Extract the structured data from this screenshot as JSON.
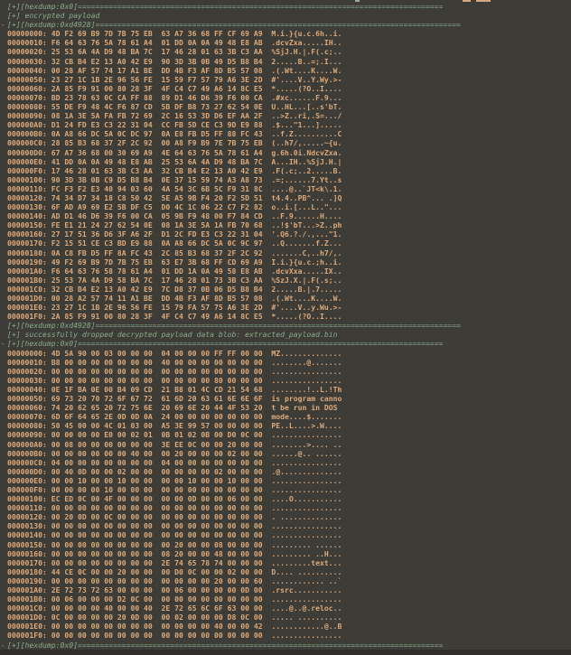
{
  "colors": {
    "background": "#3d3c37",
    "header_green": "#8bab89",
    "hex_text": "#dcaa7c",
    "bottom_band": "#302f2b"
  },
  "terminal": {
    "lines": [
      {
        "kind": "header",
        "dash": false,
        "text": "[+][hexdump:0x0]==================================================================================="
      },
      {
        "kind": "header",
        "dash": false,
        "text": "[+] encrypted payload"
      },
      {
        "kind": "header",
        "dash": true,
        "text": "[+][hexdump:0xd4928]==================================================================================="
      },
      {
        "kind": "hex",
        "dash": false,
        "text": "00000000: 4D F2 69 B9 7D 7B 75 EB  63 A7 36 68 FF CF 69 A9  M.i.}{u.c.6h..i."
      },
      {
        "kind": "hex",
        "dash": false,
        "text": "00000010: F6 64 63 76 5A 78 61 A4  01 DD 0A 0A 49 48 E8 AB  .dcvZxa.....IH.."
      },
      {
        "kind": "hex",
        "dash": false,
        "text": "00000020: 25 53 6A 4A D9 48 BA 7C  17 46 28 01 63 3B C3 AA  %SjJ.H.|.F(.c;.."
      },
      {
        "kind": "hex",
        "dash": false,
        "text": "00000030: 32 CB B4 E2 13 A0 42 E9  90 3D 3B 0B 49 D5 B8 B4  2.....B..=;.I..."
      },
      {
        "kind": "hex",
        "dash": false,
        "text": "00000040: 00 28 AF 57 74 17 A1 BE  DD 4B F3 AF 8D B5 57 08  .(.Wt....K....W."
      },
      {
        "kind": "hex",
        "dash": false,
        "text": "00000050: 23 27 1C 1B 2E 96 56 FE  15 59 F7 57 79 A6 3E 2D  #'....V..Y.Wy.>-"
      },
      {
        "kind": "hex",
        "dash": false,
        "text": "00000060: 2A 85 F9 91 00 80 28 3F  4F C4 C7 49 A6 14 8C E5  *.....(?O..I...."
      },
      {
        "kind": "hex",
        "dash": false,
        "text": "00000070: BD 23 78 63 0C CA FF 88  89 D1 46 D6 39 F6 00 CA  .#xc......F.9..."
      },
      {
        "kind": "hex",
        "dash": false,
        "text": "00000080: 55 DE F9 48 4C F6 87 CD  5B DF B8 73 27 62 54 0E  U..HL...[..s'bT."
      },
      {
        "kind": "hex",
        "dash": false,
        "text": "00000090: 08 1A 3E 5A FA FB 72 69  2C 16 53 3D D6 EF AA 2F  ..>Z..ri,.S=.../"
      },
      {
        "kind": "hex",
        "dash": false,
        "text": "000000A0: D1 24 FD E3 C3 22 31 04  CC FB 5D CE C3 9D E9 88  .$...\"1...]....."
      },
      {
        "kind": "hex",
        "dash": false,
        "text": "000000B0: 0A A8 66 DC 5A 0C DC 97  0A E8 FB D5 FF 88 FC 43  ..f.Z..........C"
      },
      {
        "kind": "hex",
        "dash": false,
        "text": "000000C0: 28 85 B3 68 37 2F 2C 92  00 A8 F9 B9 7E 7B 75 EB  (..h7/,.....~{u."
      },
      {
        "kind": "hex",
        "dash": false,
        "text": "000000D0: 67 A7 36 68 00 30 69 A9  4E 64 63 76 5A 78 61 A4  g.6h.0i.NdcvZxa."
      },
      {
        "kind": "hex",
        "dash": false,
        "text": "000000E0: 41 DD 0A 0A 49 48 E8 AB  25 53 6A 4A D9 48 BA 7C  A...IH..%SjJ.H.|"
      },
      {
        "kind": "hex",
        "dash": false,
        "text": "000000F0: 17 46 28 01 63 3B C3 AA  32 CB B4 E2 13 A0 42 E9  .F(.c;..2.....B."
      },
      {
        "kind": "hex",
        "dash": false,
        "text": "00000100: 90 3D 3B 0B C9 D5 B8 B4  0E 37 15 59 74 A3 A8 73  .=;......7.Yt..s"
      },
      {
        "kind": "hex",
        "dash": false,
        "text": "00000110: FC F3 F2 E3 40 94 03 60  4A 54 3C 6B 5C F9 31 8C  ....@..`JT<k\\.1."
      },
      {
        "kind": "hex",
        "dash": false,
        "text": "00000120: 74 34 D7 34 18 C8 50 42  5E A5 9B F4 20 F2 5D 51  t4.4..PB^... .]Q"
      },
      {
        "kind": "hex",
        "dash": false,
        "text": "00000130: 6F AD A9 69 E2 5B DF C5  D0 4C 1C 06 22 C7 F2 82  o..i.[...L..\"..."
      },
      {
        "kind": "hex",
        "dash": false,
        "text": "00000140: AD D1 46 D6 39 F6 00 CA  05 9B F9 48 00 F7 84 CD  ..F.9......H...."
      },
      {
        "kind": "hex",
        "dash": false,
        "text": "00000150: FE E1 21 24 27 62 54 0E  08 1A 3E 5A 1A FB 70 68  ..!$'bT...>Z..ph"
      },
      {
        "kind": "hex",
        "dash": false,
        "text": "00000160: 27 17 51 36 D6 3F A6 2F  D1 2C FD E3 C3 22 31 04  '.Q6.?./.,...\"1."
      },
      {
        "kind": "hex",
        "dash": false,
        "text": "00000170: F2 15 51 CE C3 BD E9 88  0A A8 66 DC 5A 0C 9C 97  ..Q.......f.Z..."
      },
      {
        "kind": "hex",
        "dash": false,
        "text": "00000180: 0A C8 FB D5 FF 8A FC 43  2C 85 B3 68 37 2F 2C 92  .......C,..h7/,."
      },
      {
        "kind": "hex",
        "dash": false,
        "text": "00000190: 49 F2 69 B9 7D 7B 75 EB  63 E7 3B 68 FF CD 69 A9  I.i.}{u.c.;h..i."
      },
      {
        "kind": "hex",
        "dash": false,
        "text": "000001A0: F6 64 63 76 58 78 61 A4  01 DD 1A 0A 49 58 E8 AB  .dcvXxa.....IX.."
      },
      {
        "kind": "hex",
        "dash": false,
        "text": "000001B0: 25 53 7A 4A D9 58 BA 7C  17 46 28 01 73 3B C3 AA  %SzJ.X.|.F(.s;.."
      },
      {
        "kind": "hex",
        "dash": false,
        "text": "000001C0: 32 CB B4 E2 13 A0 42 E9  7C D8 37 0B 06 D5 B8 B4  2.....B.|.7....."
      },
      {
        "kind": "hex",
        "dash": false,
        "text": "000001D0: 00 28 A2 57 74 11 A1 BE  DD 4B F3 AF 8D B5 57 08  .(.Wt....K....W."
      },
      {
        "kind": "hex",
        "dash": false,
        "text": "000001E0: 23 27 1C 1B 2E 96 56 FE  15 79 FA 57 75 A6 3E 2D  #'....V..y.Wu.>-"
      },
      {
        "kind": "hex",
        "dash": false,
        "text": "000001F0: 2A 85 F9 91 00 80 28 3F  4F C4 C7 49 A6 14 8C E5  *.....(?O..I...."
      },
      {
        "kind": "header",
        "dash": false,
        "text": "[+][hexdump:0xd4928]==================================================================================="
      },
      {
        "kind": "header",
        "dash": false,
        "text": "[+] successfully dropped decrypted payload data blob: extracted_payload.bin"
      },
      {
        "kind": "header",
        "dash": true,
        "text": "[+][hexdump:0x0]==================================================================================="
      },
      {
        "kind": "hex",
        "dash": false,
        "text": "00000000: 4D 5A 90 00 03 00 00 00  04 00 00 00 FF FF 00 00  MZ.............."
      },
      {
        "kind": "hex",
        "dash": false,
        "text": "00000010: B8 00 00 00 00 00 00 00  40 00 00 00 00 00 00 00  ........@......."
      },
      {
        "kind": "hex",
        "dash": false,
        "text": "00000020: 00 00 00 00 00 00 00 00  00 00 00 00 00 00 00 00  ................"
      },
      {
        "kind": "hex",
        "dash": false,
        "text": "00000030: 00 00 00 00 00 00 00 00  00 00 00 00 80 00 00 00  ................"
      },
      {
        "kind": "hex",
        "dash": false,
        "text": "00000040: 0E 1F BA 0E 00 B4 09 CD  21 B8 01 4C CD 21 54 68  ........!..L.!Th"
      },
      {
        "kind": "hex",
        "dash": false,
        "text": "00000050: 69 73 20 70 72 6F 67 72  61 6D 20 63 61 6E 6E 6F  is program canno"
      },
      {
        "kind": "hex",
        "dash": false,
        "text": "00000060: 74 20 62 65 20 72 75 6E  20 69 6E 20 44 4F 53 20  t be run in DOS "
      },
      {
        "kind": "hex",
        "dash": false,
        "text": "00000070: 6D 6F 64 65 2E 0D 0D 0A  24 00 00 00 00 00 00 00  mode....$......."
      },
      {
        "kind": "hex",
        "dash": false,
        "text": "00000080: 50 45 00 00 4C 01 03 00  A5 3E 99 57 00 00 00 00  PE..L....>.W...."
      },
      {
        "kind": "hex",
        "dash": false,
        "text": "00000090: 00 00 00 00 E0 00 02 01  0B 01 02 0B 00 D0 0C 00  ................"
      },
      {
        "kind": "hex",
        "dash": false,
        "text": "000000A0: 00 08 00 00 00 00 00 00  3E EE 0C 00 00 20 00 00  ........>.... .."
      },
      {
        "kind": "hex",
        "dash": false,
        "text": "000000B0: 00 00 00 00 00 00 40 00  00 20 00 00 00 02 00 00  ......@.. ......"
      },
      {
        "kind": "hex",
        "dash": false,
        "text": "000000C0: 04 00 00 00 00 00 00 00  04 00 00 00 00 00 00 00  ................"
      },
      {
        "kind": "hex",
        "dash": false,
        "text": "000000D0: 00 40 0D 00 00 02 00 00  00 00 00 00 02 00 00 00  .@.............."
      },
      {
        "kind": "hex",
        "dash": false,
        "text": "000000E0: 00 00 10 00 00 10 00 00  00 00 10 00 00 10 00 00  ................"
      },
      {
        "kind": "hex",
        "dash": false,
        "text": "000000F0: 00 00 00 00 10 00 00 00  00 00 00 00 00 00 00 00  ................"
      },
      {
        "kind": "hex",
        "dash": false,
        "text": "00000100: EC ED 0C 00 4F 00 00 00  00 00 0D 00 00 06 00 00  ....O..........."
      },
      {
        "kind": "hex",
        "dash": false,
        "text": "00000110: 00 00 00 00 00 00 00 00  00 00 00 00 00 00 00 00  ................"
      },
      {
        "kind": "hex",
        "dash": false,
        "text": "00000120: 00 20 0D 00 0C 00 00 00  00 00 00 00 00 00 00 00  . .............."
      },
      {
        "kind": "hex",
        "dash": false,
        "text": "00000130: 00 00 00 00 00 00 00 00  00 00 00 00 00 00 00 00  ................"
      },
      {
        "kind": "hex",
        "dash": false,
        "text": "00000140: 00 00 00 00 00 00 00 00  00 00 00 00 00 00 00 00  ................"
      },
      {
        "kind": "hex",
        "dash": false,
        "text": "00000150: 00 00 00 00 00 00 00 00  00 20 00 00 08 00 00 00  ......... ......"
      },
      {
        "kind": "hex",
        "dash": false,
        "text": "00000160: 00 00 00 00 00 00 00 00  08 20 00 00 48 00 00 00  ......... ..H..."
      },
      {
        "kind": "hex",
        "dash": false,
        "text": "00000170: 00 00 00 00 00 00 00 00  2E 74 65 78 74 00 00 00  .........text..."
      },
      {
        "kind": "hex",
        "dash": false,
        "text": "00000180: 44 CE 0C 00 00 20 00 00  00 D0 0C 00 00 02 00 00  D.... .........."
      },
      {
        "kind": "hex",
        "dash": false,
        "text": "00000190: 00 00 00 00 00 00 00 00  00 00 00 00 20 00 00 60  ............ ..`"
      },
      {
        "kind": "hex",
        "dash": false,
        "text": "000001A0: 2E 72 73 72 63 00 00 00  00 06 00 00 00 00 0D 00  .rsrc..........."
      },
      {
        "kind": "hex",
        "dash": false,
        "text": "000001B0: 00 06 00 00 00 D2 0C 00  00 00 00 00 00 00 00 00  ................"
      },
      {
        "kind": "hex",
        "dash": false,
        "text": "000001C0: 00 00 00 00 40 00 00 40  2E 72 65 6C 6F 63 00 00  ....@..@.reloc.."
      },
      {
        "kind": "hex",
        "dash": false,
        "text": "000001D0: 0C 00 00 00 00 20 0D 00  00 02 00 00 00 D8 0C 00  ..... .........."
      },
      {
        "kind": "hex",
        "dash": false,
        "text": "000001E0: 00 00 00 00 00 00 00 00  00 00 00 00 40 00 00 42  ............@..B"
      },
      {
        "kind": "hex",
        "dash": false,
        "text": "000001F0: 00 00 00 00 00 00 00 00  00 00 00 00 00 00 00 00  ................"
      },
      {
        "kind": "header",
        "dash": true,
        "text": "[+][hexdump:0x0]==================================================================================="
      }
    ]
  }
}
